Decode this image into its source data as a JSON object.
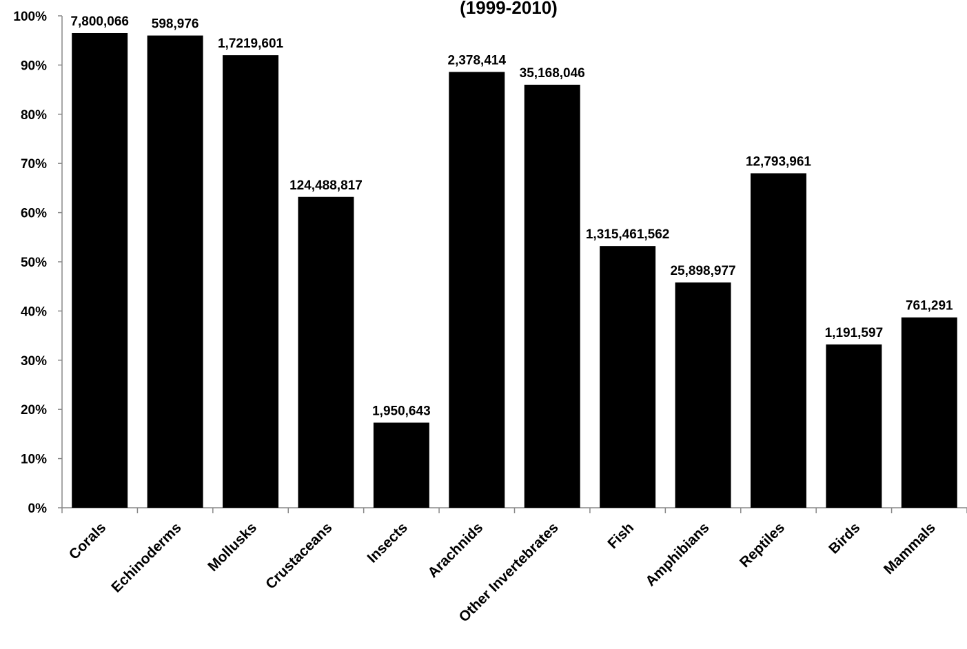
{
  "chart_data": {
    "type": "bar",
    "title": "(1999-2010)",
    "xlabel": "",
    "ylabel": "",
    "ylim": [
      0,
      100
    ],
    "y_ticks": [
      "0%",
      "10%",
      "20%",
      "30%",
      "40%",
      "50%",
      "60%",
      "70%",
      "80%",
      "90%",
      "100%"
    ],
    "categories": [
      "Corals",
      "Echinoderms",
      "Mollusks",
      "Crustaceans",
      "Insects",
      "Arachnids",
      "Other Invertebrates",
      "Fish",
      "Amphibians",
      "Reptiles",
      "Birds",
      "Mammals"
    ],
    "values": [
      96.5,
      96.0,
      92.0,
      63.2,
      17.3,
      88.6,
      86.0,
      53.2,
      45.8,
      68.0,
      33.2,
      38.7
    ],
    "data_labels": [
      "7,800,066",
      "598,976",
      "1,7219,601",
      "124,488,817",
      "1,950,643",
      "2,378,414",
      "35,168,046",
      "1,315,461,562",
      "25,898,977",
      "12,793,961",
      "1,191,597",
      "761,291"
    ],
    "grid": false,
    "legend": "none",
    "bar_color": "#000000"
  }
}
